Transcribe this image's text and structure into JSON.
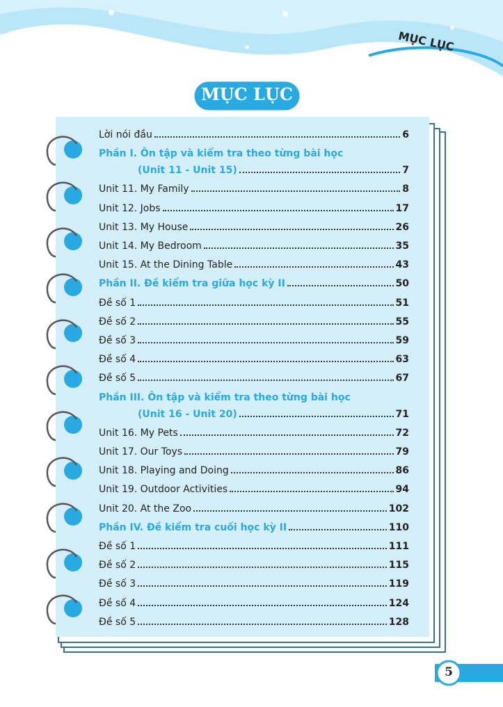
{
  "header": {
    "label": "MỤC LỤC"
  },
  "title": "MỤC LỤC",
  "entries": [
    {
      "lines": [
        "Lời nói đầu"
      ],
      "page": 6
    },
    {
      "lines": [
        "Phần I. Ôn tập và kiểm tra theo từng bài học",
        "(Unit 11 - Unit 15)"
      ],
      "page": 7,
      "color": "#29a9e1"
    },
    {
      "lines": [
        "Unit 11. My Family"
      ],
      "page": 8
    },
    {
      "lines": [
        "Unit 12. Jobs"
      ],
      "page": 17
    },
    {
      "lines": [
        "Unit 13. My House"
      ],
      "page": 26
    },
    {
      "lines": [
        "Unit 14. My Bedroom"
      ],
      "page": 35
    },
    {
      "lines": [
        "Unit 15. At the Dining Table"
      ],
      "page": 43
    },
    {
      "lines": [
        "Phần II. Đề kiểm tra giữa học kỳ II"
      ],
      "page": 50,
      "color": "#29a9e1"
    },
    {
      "lines": [
        "Đề số 1"
      ],
      "page": 51
    },
    {
      "lines": [
        "Đề số 2"
      ],
      "page": 55
    },
    {
      "lines": [
        "Đề số 3"
      ],
      "page": 59
    },
    {
      "lines": [
        "Đề số 4"
      ],
      "page": 63
    },
    {
      "lines": [
        "Đề số 5"
      ],
      "page": 67
    },
    {
      "lines": [
        "Phần III. Ôn tập và kiểm tra theo từng bài học",
        "(Unit 16 - Unit 20)"
      ],
      "page": 71,
      "color": "#29a9e1"
    },
    {
      "lines": [
        "Unit 16. My Pets"
      ],
      "page": 72
    },
    {
      "lines": [
        "Unit 17. Our Toys"
      ],
      "page": 79
    },
    {
      "lines": [
        "Unit 18. Playing and Doing"
      ],
      "page": 86
    },
    {
      "lines": [
        "Unit 19. Outdoor Activities"
      ],
      "page": 94
    },
    {
      "lines": [
        "Unit 20. At the Zoo"
      ],
      "page": 102
    },
    {
      "lines": [
        "Phần IV. Đề kiểm tra cuối học kỳ II"
      ],
      "page": 110,
      "color": "#29a9e1"
    },
    {
      "lines": [
        "Đề số 1"
      ],
      "page": 111
    },
    {
      "lines": [
        "Đề số 2"
      ],
      "page": 115
    },
    {
      "lines": [
        "Đề số 3"
      ],
      "page": 119
    },
    {
      "lines": [
        "Đề số 4"
      ],
      "page": 124
    },
    {
      "lines": [
        "Đề số 5"
      ],
      "page": 128
    }
  ],
  "page_number": 5
}
